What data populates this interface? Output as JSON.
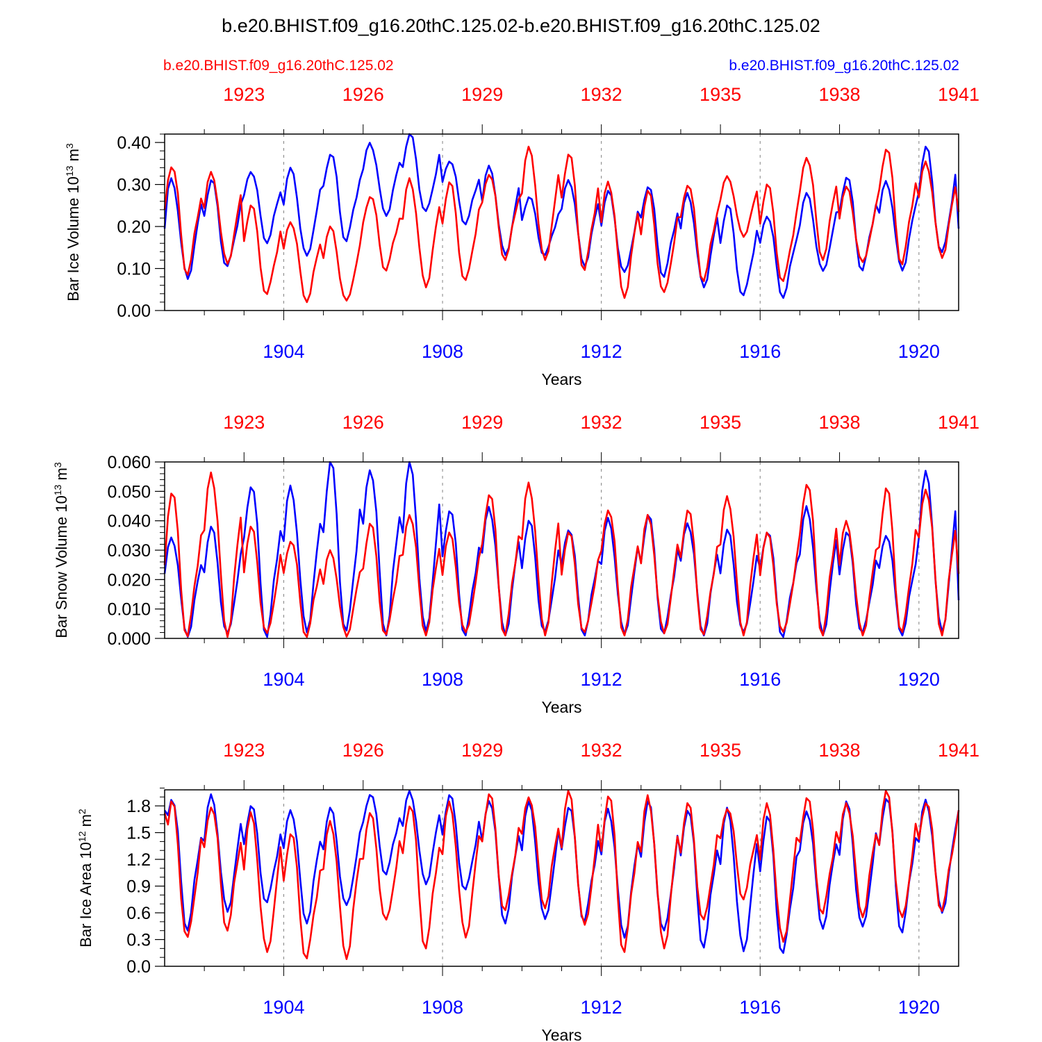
{
  "title": "b.e20.BHIST.f09_g16.20thC.125.02-b.e20.BHIST.f09_g16.20thC.125.02",
  "legend": {
    "left_label": "b.e20.BHIST.f09_g16.20thC.125.02",
    "right_label": "b.e20.BHIST.f09_g16.20thC.125.02",
    "left_color": "#ff0000",
    "right_color": "#0000ff"
  },
  "colors": {
    "red": "#ff0000",
    "blue": "#0000ff",
    "axis": "#000000",
    "grid": "#808080"
  },
  "chart_data": [
    {
      "type": "line",
      "title": "",
      "xlabel": "Years",
      "ylabel": {
        "main": "Bar Ice Volume 10",
        "sup1": "13",
        "mid": " m",
        "sup2": "3"
      },
      "x_bottom_ticks": [
        "1904",
        "1908",
        "1912",
        "1916",
        "1920"
      ],
      "x_top_ticks": [
        "1923",
        "1926",
        "1929",
        "1932",
        "1935",
        "1938",
        "1941"
      ],
      "xlim": [
        1901.0,
        1921.0
      ],
      "ylim": [
        0.0,
        0.42
      ],
      "y_ticks": [
        0.0,
        0.1,
        0.2,
        0.3,
        0.4
      ],
      "y_tick_labels": [
        "0.00",
        "0.10",
        "0.20",
        "0.30",
        "0.40"
      ],
      "y_minor_step": 0.02,
      "series": [
        {
          "name": "b.e20.BHIST.f09_g16.20thC.125.02 (1901-1920)",
          "color": "blue",
          "annual": [
            {
              "max": 0.315,
              "min": 0.075,
              "start": 0.195
            },
            {
              "max": 0.31,
              "min": 0.1
            },
            {
              "max": 0.335,
              "min": 0.16
            },
            {
              "max": 0.34,
              "min": 0.125
            },
            {
              "max": 0.375,
              "min": 0.165
            },
            {
              "max": 0.4,
              "min": 0.225
            },
            {
              "max": 0.42,
              "min": 0.23
            },
            {
              "max": 0.36,
              "min": 0.205
            },
            {
              "max": 0.345,
              "min": 0.13
            },
            {
              "max": 0.27,
              "min": 0.13
            },
            {
              "max": 0.315,
              "min": 0.105
            },
            {
              "max": 0.285,
              "min": 0.085
            },
            {
              "max": 0.3,
              "min": 0.08
            },
            {
              "max": 0.28,
              "min": 0.055
            },
            {
              "max": 0.25,
              "min": 0.03
            },
            {
              "max": 0.23,
              "min": 0.03
            },
            {
              "max": 0.28,
              "min": 0.09
            },
            {
              "max": 0.32,
              "min": 0.095
            },
            {
              "max": 0.31,
              "min": 0.095
            },
            {
              "max": 0.39,
              "min": 0.13,
              "end": 0.195
            }
          ]
        },
        {
          "name": "b.e20.BHIST.f09_g16.20thC.125.02 (1921-1940)",
          "color": "red",
          "annual": [
            {
              "max": 0.35,
              "min": 0.085,
              "start": 0.24
            },
            {
              "max": 0.33,
              "min": 0.11
            },
            {
              "max": 0.25,
              "min": 0.035
            },
            {
              "max": 0.215,
              "min": 0.02
            },
            {
              "max": 0.2,
              "min": 0.018
            },
            {
              "max": 0.275,
              "min": 0.095
            },
            {
              "max": 0.315,
              "min": 0.055
            },
            {
              "max": 0.305,
              "min": 0.065
            },
            {
              "max": 0.33,
              "min": 0.12
            },
            {
              "max": 0.39,
              "min": 0.115
            },
            {
              "max": 0.375,
              "min": 0.095
            },
            {
              "max": 0.31,
              "min": 0.03
            },
            {
              "max": 0.285,
              "min": 0.035
            },
            {
              "max": 0.305,
              "min": 0.07
            },
            {
              "max": 0.32,
              "min": 0.175
            },
            {
              "max": 0.3,
              "min": 0.065
            },
            {
              "max": 0.37,
              "min": 0.12
            },
            {
              "max": 0.295,
              "min": 0.11
            },
            {
              "max": 0.39,
              "min": 0.11
            },
            {
              "max": 0.355,
              "min": 0.125,
              "end": 0.235
            }
          ]
        }
      ]
    },
    {
      "type": "line",
      "title": "",
      "xlabel": "Years",
      "ylabel": {
        "main": "Bar Snow Volume 10",
        "sup1": "13",
        "mid": " m",
        "sup2": "3"
      },
      "x_bottom_ticks": [
        "1904",
        "1908",
        "1912",
        "1916",
        "1920"
      ],
      "x_top_ticks": [
        "1923",
        "1926",
        "1929",
        "1932",
        "1935",
        "1938",
        "1941"
      ],
      "xlim": [
        1901.0,
        1921.0
      ],
      "ylim": [
        0.0,
        0.06
      ],
      "y_ticks": [
        0.0,
        0.01,
        0.02,
        0.03,
        0.04,
        0.05,
        0.06
      ],
      "y_tick_labels": [
        "0.000",
        "0.010",
        "0.020",
        "0.030",
        "0.040",
        "0.050",
        "0.060"
      ],
      "y_minor_step": 0.002,
      "series": [
        {
          "name": "b.e20.BHIST.f09_g16.20thC.125.02 (1901-1920)",
          "color": "blue",
          "annual": [
            {
              "max": 0.035,
              "min": 0.0005,
              "start": 0.022
            },
            {
              "max": 0.038,
              "min": 0.0005
            },
            {
              "max": 0.053,
              "min": 0.0005
            },
            {
              "max": 0.052,
              "min": 0.002
            },
            {
              "max": 0.06,
              "min": 0.001
            },
            {
              "max": 0.059,
              "min": 0.001
            },
            {
              "max": 0.06,
              "min": 0.001
            },
            {
              "max": 0.044,
              "min": 0.001
            },
            {
              "max": 0.045,
              "min": 0.001
            },
            {
              "max": 0.04,
              "min": 0.001
            },
            {
              "max": 0.038,
              "min": 0.001
            },
            {
              "max": 0.041,
              "min": 0.001
            },
            {
              "max": 0.042,
              "min": 0.001
            },
            {
              "max": 0.04,
              "min": 0.001
            },
            {
              "max": 0.037,
              "min": 0.001
            },
            {
              "max": 0.037,
              "min": 0.0005
            },
            {
              "max": 0.045,
              "min": 0.001
            },
            {
              "max": 0.036,
              "min": 0.001
            },
            {
              "max": 0.036,
              "min": 0.001
            },
            {
              "max": 0.057,
              "min": 0.001,
              "end": 0.013
            }
          ]
        },
        {
          "name": "b.e20.BHIST.f09_g16.20thC.125.02 (1921-1940)",
          "color": "red",
          "annual": [
            {
              "max": 0.05,
              "min": 0.0005,
              "start": 0.025
            },
            {
              "max": 0.057,
              "min": 0.0005
            },
            {
              "max": 0.038,
              "min": 0.0005
            },
            {
              "max": 0.034,
              "min": 0.0005
            },
            {
              "max": 0.03,
              "min": 0.0005
            },
            {
              "max": 0.039,
              "min": 0.0005
            },
            {
              "max": 0.043,
              "min": 0.001
            },
            {
              "max": 0.036,
              "min": 0.001
            },
            {
              "max": 0.05,
              "min": 0.001
            },
            {
              "max": 0.053,
              "min": 0.001
            },
            {
              "max": 0.036,
              "min": 0.001
            },
            {
              "max": 0.045,
              "min": 0.001
            },
            {
              "max": 0.042,
              "min": 0.001
            },
            {
              "max": 0.044,
              "min": 0.001
            },
            {
              "max": 0.049,
              "min": 0.001
            },
            {
              "max": 0.036,
              "min": 0.001
            },
            {
              "max": 0.054,
              "min": 0.001
            },
            {
              "max": 0.04,
              "min": 0.001
            },
            {
              "max": 0.051,
              "min": 0.001
            },
            {
              "max": 0.052,
              "min": 0.001,
              "end": 0.022
            }
          ]
        }
      ]
    },
    {
      "type": "line",
      "title": "",
      "xlabel": "Years",
      "ylabel": {
        "main": "Bar Ice Area 10",
        "sup1": "12",
        "mid": " m",
        "sup2": "2"
      },
      "x_bottom_ticks": [
        "1904",
        "1908",
        "1912",
        "1916",
        "1920"
      ],
      "x_top_ticks": [
        "1923",
        "1926",
        "1929",
        "1932",
        "1935",
        "1938",
        "1941"
      ],
      "xlim": [
        1901.0,
        1921.0
      ],
      "ylim": [
        0.0,
        1.98
      ],
      "y_ticks": [
        0.0,
        0.3,
        0.6,
        0.9,
        1.2,
        1.5,
        1.8
      ],
      "y_tick_labels": [
        "0.0",
        "0.3",
        "0.6",
        "0.9",
        "1.2",
        "1.5",
        "1.8"
      ],
      "y_minor_step": 0.1,
      "series": [
        {
          "name": "b.e20.BHIST.f09_g16.20thC.125.02 (1901-1920)",
          "color": "blue",
          "annual": [
            {
              "max": 1.92,
              "min": 0.4,
              "start": 1.75
            },
            {
              "max": 1.93,
              "min": 0.6
            },
            {
              "max": 1.8,
              "min": 0.7
            },
            {
              "max": 1.78,
              "min": 0.48
            },
            {
              "max": 1.78,
              "min": 0.65
            },
            {
              "max": 1.95,
              "min": 1.03
            },
            {
              "max": 1.97,
              "min": 0.92
            },
            {
              "max": 1.92,
              "min": 0.83
            },
            {
              "max": 1.9,
              "min": 0.48
            },
            {
              "max": 1.85,
              "min": 0.5
            },
            {
              "max": 1.8,
              "min": 0.5
            },
            {
              "max": 1.78,
              "min": 0.32
            },
            {
              "max": 1.85,
              "min": 0.35
            },
            {
              "max": 1.8,
              "min": 0.21
            },
            {
              "max": 1.78,
              "min": 0.16
            },
            {
              "max": 1.68,
              "min": 0.12
            },
            {
              "max": 1.77,
              "min": 0.42
            },
            {
              "max": 1.85,
              "min": 0.4
            },
            {
              "max": 1.92,
              "min": 0.38
            },
            {
              "max": 1.87,
              "min": 0.6,
              "end": 1.75
            }
          ]
        },
        {
          "name": "b.e20.BHIST.f09_g16.20thC.125.02 (1921-1940)",
          "color": "red",
          "annual": [
            {
              "max": 1.85,
              "min": 0.28,
              "start": 1.72
            },
            {
              "max": 1.83,
              "min": 0.4
            },
            {
              "max": 1.73,
              "min": 0.13
            },
            {
              "max": 1.5,
              "min": 0.08
            },
            {
              "max": 1.65,
              "min": 0.08
            },
            {
              "max": 1.72,
              "min": 0.48
            },
            {
              "max": 1.85,
              "min": 0.2
            },
            {
              "max": 1.85,
              "min": 0.32
            },
            {
              "max": 1.93,
              "min": 0.6
            },
            {
              "max": 1.93,
              "min": 0.65
            },
            {
              "max": 1.97,
              "min": 0.42
            },
            {
              "max": 1.95,
              "min": 0.16
            },
            {
              "max": 1.92,
              "min": 0.2
            },
            {
              "max": 1.83,
              "min": 0.48
            },
            {
              "max": 1.8,
              "min": 0.75
            },
            {
              "max": 1.83,
              "min": 0.25
            },
            {
              "max": 1.9,
              "min": 0.58
            },
            {
              "max": 1.85,
              "min": 0.55
            },
            {
              "max": 1.97,
              "min": 0.5
            },
            {
              "max": 1.87,
              "min": 0.62,
              "end": 1.75
            }
          ]
        }
      ]
    }
  ]
}
